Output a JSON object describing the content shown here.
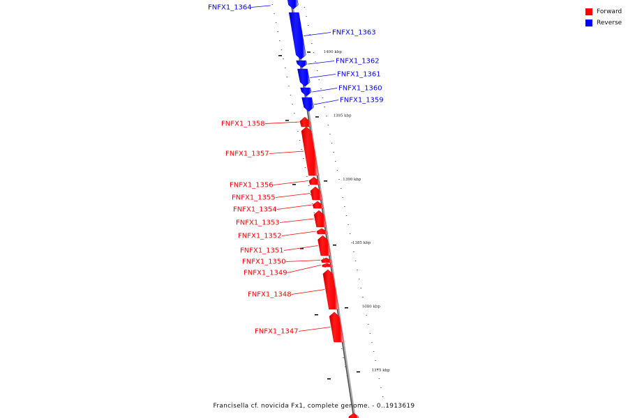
{
  "legend": {
    "forward": {
      "label": "Forward",
      "color": "#ff0000"
    },
    "reverse": {
      "label": "Reverse",
      "color": "#0000ff"
    }
  },
  "caption": "Francisella cf. novicida Fx1, complete genome. - 0..1913619",
  "ticks": [
    {
      "label": "1400 kbp",
      "kbp": 1400
    },
    {
      "label": "1395 kbp",
      "kbp": 1395
    },
    {
      "label": "1390 kbp",
      "kbp": 1390
    },
    {
      "label": "1385 kbp",
      "kbp": 1385
    },
    {
      "label": "1380 kbp",
      "kbp": 1380
    },
    {
      "label": "1375 kbp",
      "kbp": 1375
    }
  ],
  "genes": [
    {
      "name": "FNFX1_1364",
      "strand": "reverse"
    },
    {
      "name": "FNFX1_1363",
      "strand": "reverse"
    },
    {
      "name": "FNFX1_1362",
      "strand": "reverse"
    },
    {
      "name": "FNFX1_1361",
      "strand": "reverse"
    },
    {
      "name": "FNFX1_1360",
      "strand": "reverse"
    },
    {
      "name": "FNFX1_1359",
      "strand": "reverse"
    },
    {
      "name": "FNFX1_1358",
      "strand": "forward"
    },
    {
      "name": "FNFX1_1357",
      "strand": "forward"
    },
    {
      "name": "FNFX1_1356",
      "strand": "forward"
    },
    {
      "name": "FNFX1_1355",
      "strand": "forward"
    },
    {
      "name": "FNFX1_1354",
      "strand": "forward"
    },
    {
      "name": "FNFX1_1353",
      "strand": "forward"
    },
    {
      "name": "FNFX1_1352",
      "strand": "forward"
    },
    {
      "name": "FNFX1_1351",
      "strand": "forward"
    },
    {
      "name": "FNFX1_1350",
      "strand": "forward"
    },
    {
      "name": "FNFX1_1349",
      "strand": "forward"
    },
    {
      "name": "FNFX1_1348",
      "strand": "forward"
    },
    {
      "name": "FNFX1_1347",
      "strand": "forward"
    }
  ]
}
